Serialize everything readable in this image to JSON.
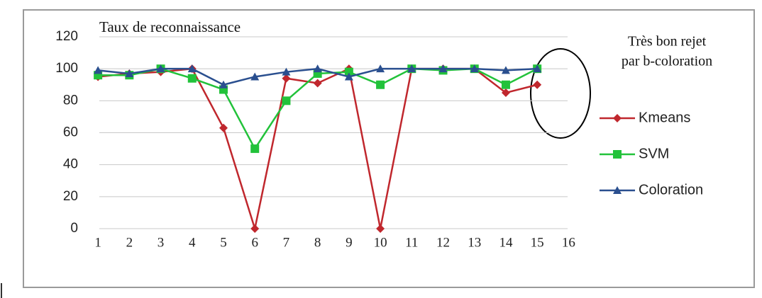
{
  "chart_data": {
    "type": "line",
    "title": "Taux de reconnaissance",
    "annotation": [
      "Très bon rejet",
      "par b-coloration"
    ],
    "x": [
      1,
      2,
      3,
      4,
      5,
      6,
      7,
      8,
      9,
      10,
      11,
      12,
      13,
      14,
      15
    ],
    "series": [
      {
        "name": "Kmeans",
        "color": "#c0272d",
        "marker": "diamond",
        "values": [
          95,
          97,
          98,
          100,
          63,
          0,
          94,
          91,
          100,
          0,
          100,
          100,
          100,
          85,
          90
        ]
      },
      {
        "name": "SVM",
        "color": "#22c23a",
        "marker": "square",
        "values": [
          96,
          96,
          100,
          94,
          87,
          50,
          80,
          97,
          98,
          90,
          100,
          99,
          100,
          90,
          100
        ]
      },
      {
        "name": "Coloration",
        "color": "#2a4f8f",
        "marker": "triangle",
        "values": [
          99,
          97,
          100,
          100,
          90,
          95,
          98,
          100,
          95,
          100,
          100,
          100,
          100,
          99,
          100
        ]
      }
    ],
    "xlim": [
      0.5,
      16.5
    ],
    "xticks": [
      1,
      2,
      3,
      4,
      5,
      6,
      7,
      8,
      9,
      10,
      11,
      12,
      13,
      14,
      15,
      16
    ],
    "ylim": [
      0,
      120
    ],
    "yticks": [
      0,
      20,
      40,
      60,
      80,
      100,
      120
    ],
    "grid": true,
    "legend": "right"
  }
}
